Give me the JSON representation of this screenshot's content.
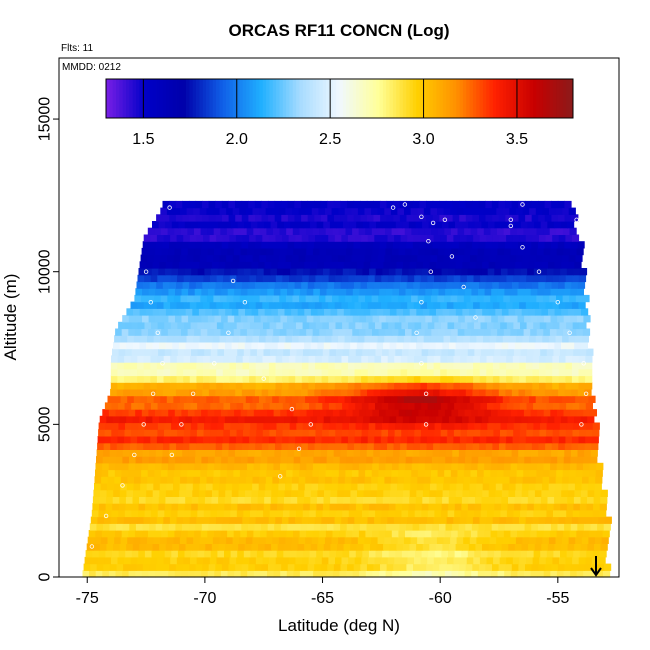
{
  "chart_data": {
    "type": "heatmap",
    "title": "ORCAS RF11 CONCN (Log)",
    "annotations": [
      "Flts: 11",
      "MMDD: 0212"
    ],
    "xlabel": "Latitude (deg N)",
    "ylabel": "Altitude (m)",
    "xlim": [
      -76.2,
      -52.4
    ],
    "ylim": [
      0,
      17000
    ],
    "x_ticks": [
      -75,
      -70,
      -65,
      -60,
      -55
    ],
    "x_tick_labels": [
      "-75",
      "-70",
      "-65",
      "-60",
      "-55"
    ],
    "y_ticks": [
      0,
      5000,
      10000,
      15000
    ],
    "y_tick_labels": [
      "0",
      "5000",
      "10000",
      "15000"
    ],
    "colorbar": {
      "range": [
        1.3,
        3.8
      ],
      "ticks": [
        1.5,
        2.0,
        2.5,
        3.0,
        3.5
      ],
      "tick_labels": [
        "1.5",
        "2.0",
        "2.5",
        "3.0",
        "3.5"
      ],
      "colors": [
        "#7a1fe6",
        "#0000c8",
        "#0000aa",
        "#1060e8",
        "#20b0ff",
        "#a8dcff",
        "#f0f8ff",
        "#ffff99",
        "#ffd000",
        "#ff9000",
        "#ff2000",
        "#c80000",
        "#8b1a1a"
      ]
    },
    "profile": {
      "altitude": [
        0,
        500,
        1000,
        2000,
        3000,
        4000,
        4500,
        5000,
        5500,
        6000,
        6500,
        7000,
        8000,
        9000,
        10000,
        11000,
        12000
      ],
      "value": [
        2.9,
        2.95,
        2.95,
        2.95,
        3.0,
        3.15,
        3.35,
        3.35,
        3.3,
        3.15,
        2.8,
        2.55,
        2.35,
        2.1,
        1.7,
        1.5,
        1.45
      ]
    },
    "hotspot": {
      "lat": -61.0,
      "alt": 5600,
      "peak": 3.7
    },
    "extent": {
      "altitude": [
        0,
        1000,
        2000,
        3000,
        4000,
        5000,
        6000,
        7000,
        8000,
        9000,
        10000,
        11000,
        12000
      ],
      "lat_min": [
        -75.2,
        -75.0,
        -74.8,
        -74.7,
        -74.6,
        -74.5,
        -74.0,
        -74.0,
        -73.8,
        -73.0,
        -72.8,
        -72.6,
        -71.8
      ],
      "lat_max": [
        -53.0,
        -53.0,
        -53.0,
        -53.2,
        -53.4,
        -53.5,
        -53.6,
        -53.7,
        -53.8,
        -53.9,
        -54.0,
        -54.2,
        -54.5
      ]
    },
    "flight_track": [
      [
        -71.5,
        12100
      ],
      [
        -62,
        12100
      ],
      [
        -61.5,
        12200
      ],
      [
        -56.5,
        12200
      ],
      [
        -60.8,
        11800
      ],
      [
        -57,
        11700
      ],
      [
        -54.2,
        11700
      ],
      [
        -72.5,
        10000
      ],
      [
        -72.3,
        9000
      ],
      [
        -72.0,
        8000
      ],
      [
        -71.8,
        7000
      ],
      [
        -72.2,
        6000
      ],
      [
        -72.6,
        5000
      ],
      [
        -73.0,
        4000
      ],
      [
        -73.5,
        3000
      ],
      [
        -74.2,
        2000
      ],
      [
        -74.8,
        1000
      ],
      [
        -68.8,
        9700
      ],
      [
        -68.3,
        9000
      ],
      [
        -69.0,
        8000
      ],
      [
        -69.6,
        7000
      ],
      [
        -70.5,
        6000
      ],
      [
        -71.0,
        5000
      ],
      [
        -71.4,
        4000
      ],
      [
        -67.5,
        6500
      ],
      [
        -66.3,
        5500
      ],
      [
        -65.5,
        5000
      ],
      [
        -66.0,
        4200
      ],
      [
        -66.8,
        3300
      ],
      [
        -60.3,
        11600
      ],
      [
        -60.5,
        11000
      ],
      [
        -60.4,
        10000
      ],
      [
        -60.8,
        9000
      ],
      [
        -61.0,
        8000
      ],
      [
        -60.8,
        7000
      ],
      [
        -60.6,
        6000
      ],
      [
        -60.6,
        5000
      ],
      [
        -59.8,
        11700
      ],
      [
        -59.5,
        10500
      ],
      [
        -59.0,
        9500
      ],
      [
        -58.5,
        8500
      ],
      [
        -57.0,
        11500
      ],
      [
        -56.5,
        10800
      ],
      [
        -55.8,
        10000
      ],
      [
        -55.0,
        9000
      ],
      [
        -54.5,
        8000
      ],
      [
        -53.9,
        7000
      ],
      [
        -53.8,
        6000
      ],
      [
        -54.0,
        5000
      ]
    ]
  }
}
